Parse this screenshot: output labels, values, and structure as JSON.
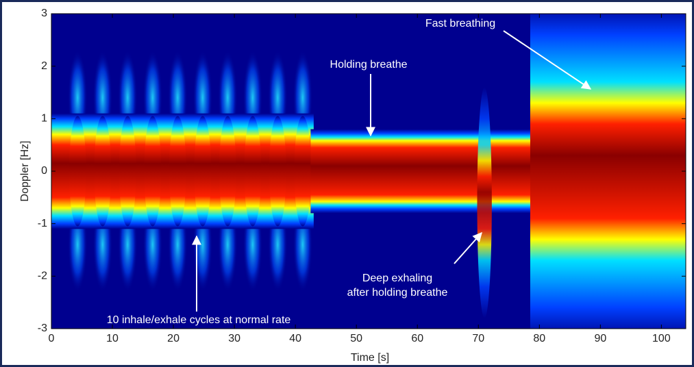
{
  "chart_data": {
    "type": "spectrogram",
    "xlabel": "Time [s]",
    "ylabel": "Doppler [Hz]",
    "xlim": [
      0,
      104
    ],
    "ylim": [
      -3,
      3
    ],
    "xticks": [
      0,
      10,
      20,
      30,
      40,
      50,
      60,
      70,
      80,
      90,
      100
    ],
    "yticks": [
      -3,
      -2,
      -1,
      0,
      1,
      2,
      3
    ],
    "annotations": [
      [
        "Fast breathing"
      ],
      [
        "Holding breathe"
      ],
      [
        "Deep exhaling",
        "after holding breathe"
      ],
      [
        "10 inhale/exhale cycles at normal rate"
      ]
    ]
  }
}
